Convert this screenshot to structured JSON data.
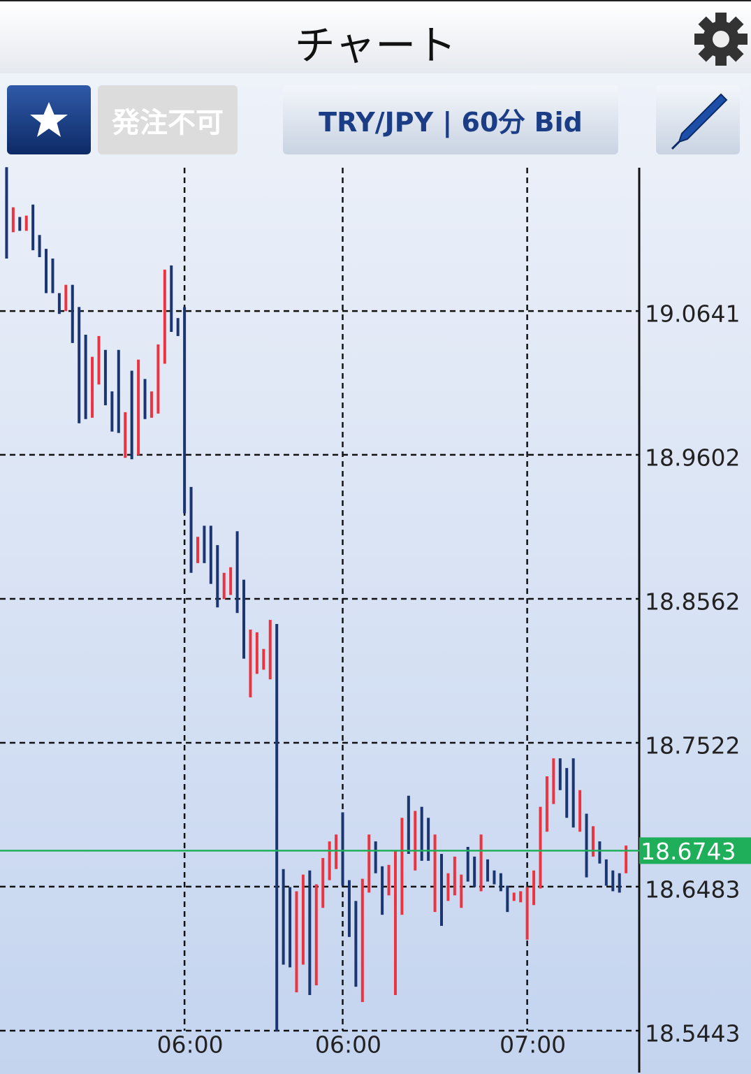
{
  "header": {
    "title": "チャート"
  },
  "toolbar": {
    "order_status": "発注不可",
    "symbol": "TRY/JPY | 60分 Bid"
  },
  "chart_data": {
    "type": "range-bar",
    "ylim": [
      18.514,
      19.1676
    ],
    "yticks": [
      19.0641,
      18.9602,
      18.8562,
      18.7522,
      18.6483,
      18.5443
    ],
    "xticks": [
      {
        "value": 27,
        "label": "06:00"
      },
      {
        "value": 51,
        "label": "06:00"
      },
      {
        "value": 79,
        "label": "07:00"
      }
    ],
    "grid": true,
    "last_price": 18.6743,
    "last_price_color": "#1fae5a",
    "high": [
      19.168,
      19.139,
      19.132,
      19.133,
      19.141,
      19.119,
      19.109,
      19.102,
      19.077,
      19.083,
      19.083,
      19.067,
      19.047,
      19.031,
      19.046,
      19.036,
      19.006,
      19.036,
      18.991,
      19.021,
      19.029,
      19.015,
      19.006,
      19.04,
      19.094,
      19.097,
      19.059,
      19.067,
      18.937,
      18.901,
      18.909,
      18.909,
      18.895,
      18.875,
      18.879,
      18.905,
      18.87,
      18.834,
      18.832,
      18.82,
      18.841,
      18.838,
      18.661,
      18.648,
      18.645,
      18.657,
      18.66,
      18.65,
      18.669,
      18.681,
      18.686,
      18.702,
      18.653,
      18.638,
      18.654,
      18.686,
      18.681,
      18.663,
      18.664,
      18.674,
      18.698,
      18.714,
      18.703,
      18.706,
      18.698,
      18.686,
      18.672,
      18.658,
      18.67,
      18.657,
      18.677,
      18.67,
      18.686,
      18.668,
      18.66,
      18.658,
      18.649,
      18.644,
      18.645,
      18.648,
      18.66,
      18.706,
      18.728,
      18.741,
      18.741,
      18.734,
      18.741,
      18.718,
      18.701,
      18.692,
      18.681,
      18.668,
      18.66,
      18.658,
      18.678
    ],
    "low": [
      19.102,
      19.121,
      19.122,
      19.122,
      19.108,
      19.103,
      19.077,
      19.077,
      19.062,
      19.064,
      19.041,
      18.983,
      18.986,
      18.987,
      19.011,
      18.996,
      18.977,
      18.976,
      18.958,
      18.957,
      18.96,
      18.986,
      18.987,
      18.99,
      19.026,
      19.049,
      19.046,
      18.918,
      18.875,
      18.882,
      18.882,
      18.867,
      18.85,
      18.856,
      18.859,
      18.846,
      18.813,
      18.785,
      18.802,
      18.805,
      18.798,
      18.544,
      18.592,
      18.59,
      18.572,
      18.592,
      18.57,
      18.577,
      18.633,
      18.653,
      18.661,
      18.649,
      18.612,
      18.576,
      18.565,
      18.644,
      18.658,
      18.628,
      18.642,
      18.57,
      18.628,
      18.672,
      18.66,
      18.667,
      18.667,
      18.63,
      18.62,
      18.638,
      18.642,
      18.633,
      18.652,
      18.648,
      18.645,
      18.652,
      18.65,
      18.645,
      18.63,
      18.638,
      18.637,
      18.61,
      18.635,
      18.647,
      18.688,
      18.708,
      18.718,
      18.698,
      18.691,
      18.688,
      18.655,
      18.67,
      18.665,
      18.649,
      18.645,
      18.644,
      18.658
    ],
    "bar_colors": [
      "#1a3570",
      "#ec3440",
      "#1a3570",
      "#ec3440",
      "#1a3570",
      "#1a3570",
      "#1a3570",
      "#1a3570",
      "#1a3570",
      "#ec3440",
      "#1a3570",
      "#1a3570",
      "#1a3570",
      "#ec3440",
      "#ec3440",
      "#1a3570",
      "#1a3570",
      "#1a3570",
      "#ec3440",
      "#1a3570",
      "#ec3440",
      "#1a3570",
      "#ec3440",
      "#ec3440",
      "#ec3440",
      "#1a3570",
      "#1a3570",
      "#1a3570",
      "#1a3570",
      "#ec3440",
      "#1a3570",
      "#1a3570",
      "#1a3570",
      "#ec3440",
      "#ec3440",
      "#1a3570",
      "#1a3570",
      "#ec3440",
      "#ec3440",
      "#ec3440",
      "#ec3440",
      "#1a3570",
      "#1a3570",
      "#1a3570",
      "#ec3440",
      "#ec3440",
      "#1a3570",
      "#ec3440",
      "#ec3440",
      "#ec3440",
      "#ec3440",
      "#1a3570",
      "#1a3570",
      "#1a3570",
      "#ec3440",
      "#ec3440",
      "#1a3570",
      "#1a3570",
      "#ec3440",
      "#ec3440",
      "#ec3440",
      "#1a3570",
      "#ec3440",
      "#1a3570",
      "#1a3570",
      "#ec3440",
      "#1a3570",
      "#ec3440",
      "#ec3440",
      "#ec3440",
      "#1a3570",
      "#1a3570",
      "#ec3440",
      "#1a3570",
      "#1a3570",
      "#1a3570",
      "#1a3570",
      "#ec3440",
      "#ec3440",
      "#ec3440",
      "#ec3440",
      "#ec3440",
      "#ec3440",
      "#ec3440",
      "#1a3570",
      "#1a3570",
      "#1a3570",
      "#ec3440",
      "#1a3570",
      "#ec3440",
      "#1a3570",
      "#1a3570",
      "#1a3570",
      "#1a3570",
      "#ec3440"
    ]
  }
}
